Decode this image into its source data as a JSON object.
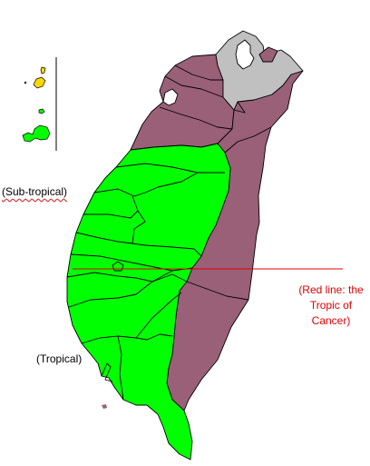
{
  "labels": {
    "subtropical": "(Sub-tropical)",
    "tropical": "(Tropical)",
    "tropic_note": "(Red line: the Tropic of Cancer)"
  },
  "colors": {
    "subtropical_fill": "#996077",
    "tropical_fill": "#00ff00",
    "urban_fill": "#c0c0c0",
    "island_yellow": "#ffd700",
    "tropic_line": "#e00000",
    "tropic_text": "#e00000",
    "border": "#000000"
  },
  "legend": {
    "tropic_line": "Red line: the Tropic of Cancer"
  }
}
